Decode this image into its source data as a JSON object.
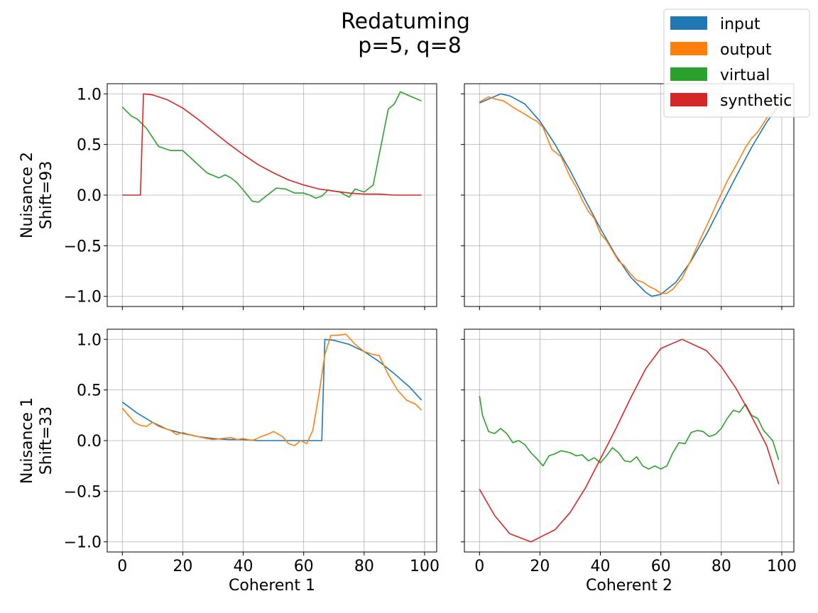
{
  "figure": {
    "title_line1": "Redatuming",
    "title_line2": "p=5, q=8"
  },
  "colors": {
    "input": "#1f77b4",
    "output": "#ff7f0e",
    "virtual": "#2ca02c",
    "synthetic": "#d62728",
    "grid": "#b0b0b0"
  },
  "legend": {
    "placement": "top-right",
    "entries": [
      {
        "key": "input",
        "label": "input"
      },
      {
        "key": "output",
        "label": "output"
      },
      {
        "key": "virtual",
        "label": "virtual"
      },
      {
        "key": "synthetic",
        "label": "synthetic"
      }
    ]
  },
  "axes_text": {
    "row_labels": [
      {
        "line1": "Nuisance 2",
        "line2": "Shift=93"
      },
      {
        "line1": "Nuisance 1",
        "line2": "Shift=33"
      }
    ],
    "col_labels": [
      "Coherent 1",
      "Coherent 2"
    ],
    "x_ticks": [
      "0",
      "20",
      "40",
      "60",
      "80",
      "100"
    ],
    "y_ticks": [
      "1.0",
      "0.5",
      "0.0",
      "−0.5",
      "−1.0"
    ]
  },
  "chart_data": [
    {
      "type": "line",
      "row": "Nuisance 2",
      "col": "Coherent 1",
      "xlim": [
        -5,
        104
      ],
      "ylim": [
        -1.1,
        1.1
      ],
      "grid": true,
      "series": [
        {
          "name": "virtual",
          "x": [
            0,
            3,
            5,
            8,
            12,
            16,
            20,
            24,
            28,
            32,
            34,
            36,
            38,
            40,
            43,
            45,
            48,
            51,
            54,
            57,
            60,
            62,
            64,
            66,
            68,
            70,
            72,
            75,
            77,
            80,
            83,
            85,
            87,
            88,
            90,
            92,
            95,
            99
          ],
          "y": [
            0.87,
            0.78,
            0.75,
            0.66,
            0.48,
            0.44,
            0.44,
            0.33,
            0.22,
            0.17,
            0.2,
            0.17,
            0.12,
            0.05,
            -0.06,
            -0.07,
            0.0,
            0.07,
            0.06,
            0.02,
            0.02,
            0.0,
            -0.03,
            -0.01,
            0.05,
            0.04,
            0.03,
            -0.02,
            0.06,
            0.03,
            0.1,
            0.4,
            0.7,
            0.85,
            0.9,
            1.02,
            0.98,
            0.93
          ]
        },
        {
          "name": "synthetic",
          "x": [
            0,
            6,
            7,
            10,
            15,
            20,
            25,
            30,
            35,
            40,
            45,
            50,
            55,
            60,
            65,
            70,
            75,
            80,
            85,
            90,
            95,
            99
          ],
          "y": [
            0,
            0,
            1.0,
            0.99,
            0.94,
            0.86,
            0.75,
            0.63,
            0.51,
            0.4,
            0.3,
            0.22,
            0.15,
            0.1,
            0.06,
            0.04,
            0.02,
            0.01,
            0.01,
            0.0,
            0.0,
            0.0
          ]
        }
      ]
    },
    {
      "type": "line",
      "row": "Nuisance 2",
      "col": "Coherent 2",
      "xlim": [
        -5,
        104
      ],
      "ylim": [
        -1.1,
        1.1
      ],
      "grid": true,
      "series": [
        {
          "name": "input",
          "x": [
            0,
            7,
            10,
            15,
            20,
            25,
            30,
            35,
            40,
            45,
            50,
            55,
            57,
            60,
            65,
            70,
            75,
            80,
            85,
            90,
            95,
            99
          ],
          "y": [
            0.91,
            1.0,
            0.98,
            0.9,
            0.73,
            0.5,
            0.24,
            -0.05,
            -0.33,
            -0.59,
            -0.81,
            -0.96,
            -1.0,
            -0.98,
            -0.86,
            -0.65,
            -0.39,
            -0.1,
            0.19,
            0.47,
            0.72,
            0.88
          ]
        },
        {
          "name": "output",
          "x": [
            0,
            3,
            5,
            8,
            10,
            12,
            15,
            17,
            19,
            21,
            24,
            27,
            30,
            32,
            34,
            36,
            38,
            40,
            42,
            44,
            46,
            48,
            50,
            52,
            54,
            56,
            58,
            60,
            62,
            64,
            67,
            70,
            73,
            76,
            79,
            82,
            85,
            88,
            90,
            92,
            95,
            99
          ],
          "y": [
            0.92,
            0.97,
            0.95,
            0.93,
            0.89,
            0.85,
            0.8,
            0.76,
            0.73,
            0.67,
            0.45,
            0.38,
            0.18,
            0.08,
            -0.05,
            -0.16,
            -0.23,
            -0.38,
            -0.45,
            -0.55,
            -0.65,
            -0.7,
            -0.78,
            -0.84,
            -0.86,
            -0.9,
            -0.93,
            -0.97,
            -0.97,
            -0.93,
            -0.82,
            -0.64,
            -0.44,
            -0.25,
            -0.05,
            0.14,
            0.3,
            0.47,
            0.56,
            0.62,
            0.76,
            0.88
          ]
        }
      ]
    },
    {
      "type": "line",
      "row": "Nuisance 1",
      "col": "Coherent 1",
      "xlim": [
        -5,
        104
      ],
      "ylim": [
        -1.1,
        1.1
      ],
      "grid": true,
      "series": [
        {
          "name": "input",
          "x": [
            0,
            5,
            10,
            15,
            20,
            25,
            30,
            35,
            40,
            45,
            50,
            55,
            60,
            65,
            66,
            67,
            70,
            75,
            80,
            85,
            90,
            95,
            99
          ],
          "y": [
            0.38,
            0.27,
            0.18,
            0.11,
            0.07,
            0.04,
            0.02,
            0.01,
            0.01,
            0.0,
            0.0,
            0.0,
            0.0,
            0.0,
            0.0,
            1.0,
            0.99,
            0.95,
            0.88,
            0.78,
            0.66,
            0.53,
            0.4
          ]
        },
        {
          "name": "output",
          "x": [
            0,
            2,
            4,
            6,
            8,
            10,
            12,
            14,
            16,
            18,
            20,
            22,
            25,
            28,
            30,
            33,
            36,
            38,
            40,
            43,
            46,
            48,
            50,
            53,
            55,
            57,
            59,
            61,
            63,
            65,
            67,
            69,
            71,
            74,
            77,
            80,
            83,
            85,
            88,
            91,
            94,
            97,
            99
          ],
          "y": [
            0.32,
            0.25,
            0.18,
            0.15,
            0.14,
            0.18,
            0.14,
            0.12,
            0.1,
            0.06,
            0.08,
            0.06,
            0.04,
            0.02,
            0.01,
            0.02,
            0.03,
            0.01,
            0.02,
            0.0,
            0.04,
            0.06,
            0.09,
            0.04,
            -0.03,
            -0.05,
            0.0,
            -0.03,
            0.1,
            0.45,
            0.85,
            1.04,
            1.04,
            1.05,
            0.95,
            0.88,
            0.85,
            0.84,
            0.65,
            0.5,
            0.4,
            0.36,
            0.3
          ]
        }
      ]
    },
    {
      "type": "line",
      "row": "Nuisance 1",
      "col": "Coherent 2",
      "xlim": [
        -5,
        104
      ],
      "ylim": [
        -1.1,
        1.1
      ],
      "grid": true,
      "series": [
        {
          "name": "virtual",
          "x": [
            0,
            1,
            3,
            5,
            7,
            9,
            11,
            13,
            15,
            17,
            19,
            21,
            23,
            25,
            27,
            30,
            32,
            34,
            36,
            38,
            40,
            42,
            44,
            46,
            48,
            50,
            52,
            54,
            56,
            58,
            60,
            62,
            64,
            66,
            68,
            70,
            72,
            74,
            76,
            78,
            80,
            82,
            84,
            86,
            88,
            90,
            92,
            94,
            97,
            99
          ],
          "y": [
            0.44,
            0.25,
            0.09,
            0.07,
            0.12,
            0.07,
            -0.02,
            0.0,
            -0.04,
            -0.12,
            -0.18,
            -0.25,
            -0.15,
            -0.13,
            -0.1,
            -0.12,
            -0.15,
            -0.14,
            -0.2,
            -0.17,
            -0.22,
            -0.15,
            -0.07,
            -0.12,
            -0.2,
            -0.21,
            -0.16,
            -0.25,
            -0.28,
            -0.25,
            -0.28,
            -0.25,
            -0.12,
            -0.02,
            -0.03,
            0.08,
            0.1,
            0.09,
            0.04,
            0.06,
            0.12,
            0.22,
            0.3,
            0.28,
            0.36,
            0.25,
            0.22,
            0.1,
            0.0,
            -0.19
          ]
        },
        {
          "name": "synthetic",
          "x": [
            0,
            5,
            10,
            17,
            25,
            30,
            35,
            40,
            45,
            50,
            55,
            60,
            67,
            75,
            80,
            85,
            90,
            95,
            99
          ],
          "y": [
            -0.48,
            -0.74,
            -0.92,
            -1.0,
            -0.88,
            -0.71,
            -0.47,
            -0.18,
            0.11,
            0.42,
            0.71,
            0.91,
            1.0,
            0.89,
            0.73,
            0.51,
            0.24,
            -0.05,
            -0.43
          ]
        }
      ]
    }
  ]
}
